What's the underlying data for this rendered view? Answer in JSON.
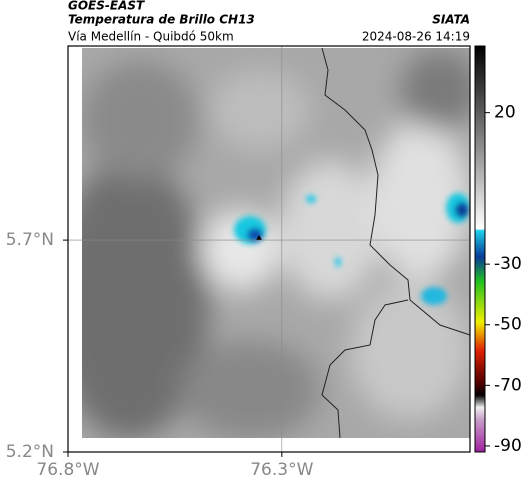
{
  "header": {
    "satellite": "GOES-EAST",
    "product": "Temperatura de Brillo CH13",
    "source": "SIATA",
    "region": "Vía Medellín - Quibdó 50km",
    "datetime": "2024-08-26 14:19"
  },
  "map": {
    "xlim": [
      -76.8,
      -75.86
    ],
    "ylim": [
      5.2,
      6.158
    ],
    "xticks": [
      {
        "value": -76.8,
        "label": "76.8°W"
      },
      {
        "value": -76.3,
        "label": "76.3°W"
      }
    ],
    "yticks": [
      {
        "value": 5.2,
        "label": "5.2°N"
      },
      {
        "value": 5.7,
        "label": "5.7°N"
      }
    ],
    "grid": true
  },
  "colorbar": {
    "lim": [
      -92,
      42
    ],
    "ticks": [
      20,
      -30,
      -50,
      -70,
      -90
    ]
  }
}
